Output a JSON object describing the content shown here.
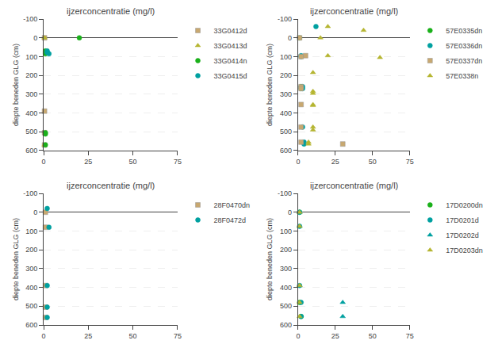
{
  "chart_data": [
    {
      "type": "scatter",
      "title": "ijzerconcentratie (mg/l)",
      "ylabel": "diepte beneden GLG (cm)",
      "xlim": [
        0,
        75
      ],
      "ylim": [
        600,
        -100
      ],
      "xticks": [
        0,
        25,
        50,
        75
      ],
      "yticks": [
        -100,
        0,
        100,
        200,
        300,
        400,
        500,
        600
      ],
      "grid": "y",
      "legend": "upper right",
      "series": [
        {
          "name": "33G0412d",
          "color": "#c8a870",
          "marker": "square",
          "x": [
            0.5,
            0.5,
            0.5,
            0.5
          ],
          "values": [
            0,
            390,
            505,
            570
          ]
        },
        {
          "name": "33G0413d",
          "color": "#b5b530",
          "marker": "triangle",
          "x": [
            0.5,
            0.5
          ],
          "values": [
            0,
            570
          ]
        },
        {
          "name": "33G0414n",
          "color": "#1ab01a",
          "marker": "circle",
          "x": [
            20,
            1,
            1,
            1,
            1,
            1,
            1
          ],
          "values": [
            0,
            70,
            78,
            85,
            505,
            512,
            570
          ]
        },
        {
          "name": "33G0415d",
          "color": "#00a0a0",
          "marker": "circle",
          "x": [
            2,
            2,
            3
          ],
          "values": [
            70,
            78,
            85
          ]
        }
      ]
    },
    {
      "type": "scatter",
      "title": "ijzerconcentratie (mg/l)",
      "ylabel": "diepte beneden GLG (cm)",
      "xlim": [
        0,
        75
      ],
      "ylim": [
        600,
        -100
      ],
      "xticks": [
        0,
        25,
        50,
        75
      ],
      "yticks": [
        -100,
        0,
        100,
        200,
        300,
        400,
        500,
        600
      ],
      "grid": "y",
      "legend": "upper right",
      "series": [
        {
          "name": "57E0335dn",
          "color": "#1ab01a",
          "marker": "circle",
          "x": [
            1,
            2,
            2
          ],
          "values": [
            0,
            260,
            270
          ]
        },
        {
          "name": "57E0336dn",
          "color": "#00a0a0",
          "marker": "circle",
          "x": [
            12,
            2,
            2,
            3,
            3,
            3,
            4,
            4
          ],
          "values": [
            -60,
            95,
            100,
            260,
            270,
            475,
            555,
            565
          ]
        },
        {
          "name": "57E0337dn",
          "color": "#c8a870",
          "marker": "square",
          "x": [
            1,
            5,
            2,
            2,
            2,
            2,
            2,
            2,
            30
          ],
          "values": [
            0,
            95,
            100,
            260,
            270,
            355,
            475,
            555,
            565
          ]
        },
        {
          "name": "57E0338n",
          "color": "#b5b530",
          "marker": "triangle",
          "x": [
            20,
            15,
            44,
            20,
            55,
            10,
            10,
            10,
            10,
            10,
            10,
            10,
            7,
            7
          ],
          "values": [
            -60,
            0,
            -40,
            95,
            105,
            185,
            285,
            295,
            355,
            360,
            475,
            490,
            555,
            565
          ]
        }
      ]
    },
    {
      "type": "scatter",
      "title": "ijzerconcentratie (mg/l)",
      "ylabel": "diepte beneden GLG (cm)",
      "xlim": [
        0,
        75
      ],
      "ylim": [
        600,
        -100
      ],
      "xticks": [
        0,
        25,
        50,
        75
      ],
      "yticks": [
        -100,
        0,
        100,
        200,
        300,
        400,
        500,
        600
      ],
      "grid": "y",
      "legend": "upper right",
      "series": [
        {
          "name": "28F0470dn",
          "color": "#c8a870",
          "marker": "square",
          "x": [
            1,
            1,
            1,
            1,
            1
          ],
          "values": [
            0,
            80,
            390,
            505,
            560
          ]
        },
        {
          "name": "28F0472d",
          "color": "#00a0a0",
          "marker": "circle",
          "x": [
            2,
            3,
            2,
            2,
            2
          ],
          "values": [
            -20,
            80,
            390,
            505,
            560
          ]
        }
      ]
    },
    {
      "type": "scatter",
      "title": "ijzerconcentratie (mg/l)",
      "ylabel": "diepte beneden GLG (cm)",
      "xlim": [
        0,
        75
      ],
      "ylim": [
        600,
        -100
      ],
      "xticks": [
        0,
        25,
        50,
        75
      ],
      "yticks": [
        -100,
        0,
        100,
        200,
        300,
        400,
        500,
        600
      ],
      "grid": "y",
      "legend": "upper right",
      "series": [
        {
          "name": "17D0200dn",
          "color": "#1ab01a",
          "marker": "circle",
          "x": [
            1,
            1,
            2
          ],
          "values": [
            0,
            480,
            555
          ]
        },
        {
          "name": "17D0201d",
          "color": "#00a0a0",
          "marker": "circle",
          "x": [
            1,
            1,
            1,
            2,
            2
          ],
          "values": [
            0,
            75,
            390,
            480,
            555
          ]
        },
        {
          "name": "17D0202d",
          "color": "#00a0a0",
          "marker": "triangle",
          "x": [
            1,
            1,
            1,
            30,
            30
          ],
          "values": [
            0,
            75,
            390,
            480,
            555
          ]
        },
        {
          "name": "17D0203dn",
          "color": "#b5b530",
          "marker": "triangle",
          "x": [
            1,
            1,
            1,
            1,
            1
          ],
          "values": [
            0,
            75,
            390,
            480,
            555
          ]
        }
      ]
    }
  ]
}
